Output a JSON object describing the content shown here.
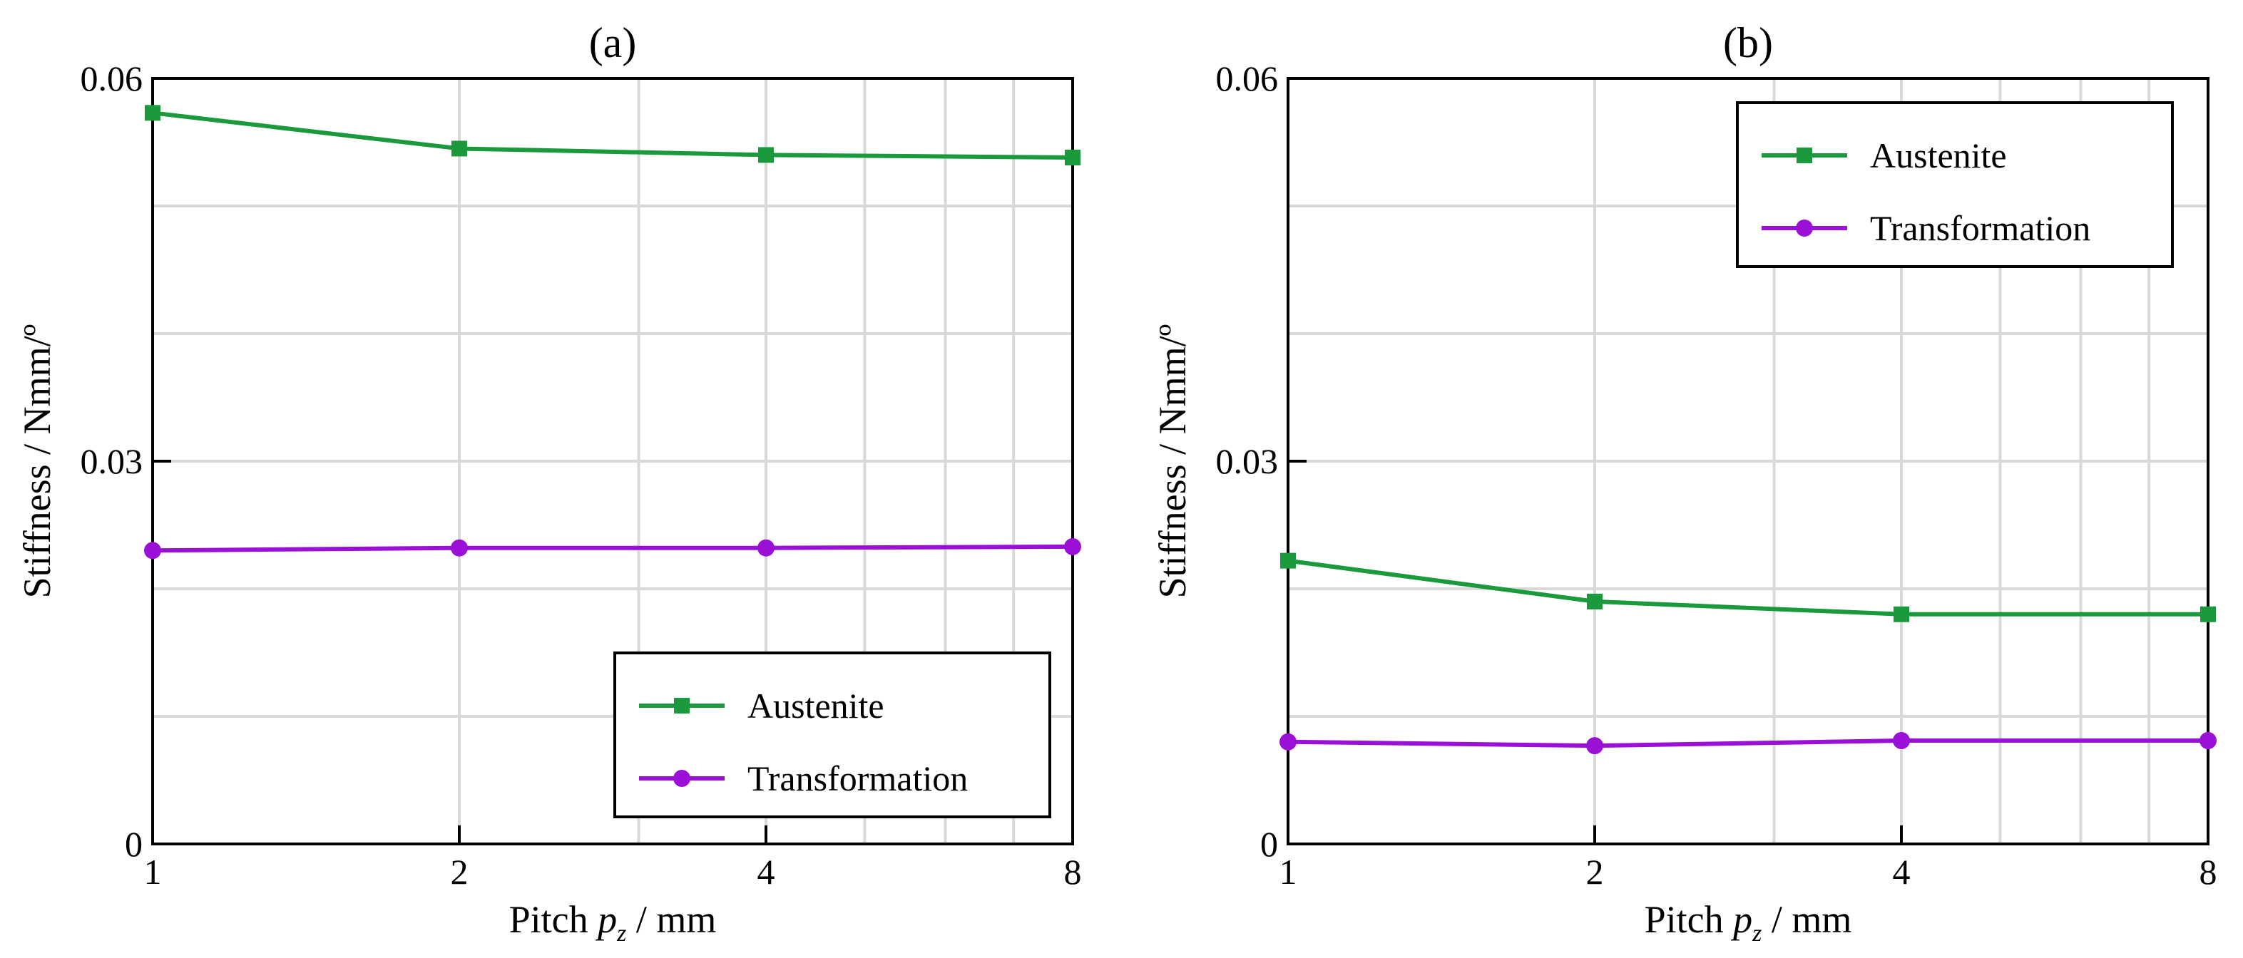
{
  "colors": {
    "austenite": "#1a9a3c",
    "transformation": "#9a10d6",
    "grid": "#d9d9d9",
    "axes": "#000000"
  },
  "chart_data": [
    {
      "type": "line",
      "title": "(a)",
      "xlabel_prefix": "Pitch ",
      "xlabel_var": "p",
      "xlabel_sub": "z",
      "xlabel_suffix": " / mm",
      "ylabel": "Stiffness / Nmm/º",
      "x_scale": "log2",
      "xlim": [
        1,
        8
      ],
      "ylim": [
        0,
        0.06
      ],
      "x_ticks": [
        1,
        2,
        4,
        8
      ],
      "x_tick_labels": [
        "1",
        "2",
        "4",
        "8"
      ],
      "y_ticks": [
        0,
        0.03,
        0.06
      ],
      "y_tick_labels": [
        "0",
        "0.03",
        "0.06"
      ],
      "grid": true,
      "legend_position": "bottom-right",
      "series": [
        {
          "name": "Austenite",
          "marker": "square",
          "color": "#1a9a3c",
          "x": [
            1,
            2,
            4,
            8
          ],
          "y": [
            0.0573,
            0.0545,
            0.054,
            0.0538
          ]
        },
        {
          "name": "Transformation",
          "marker": "circle",
          "color": "#9a10d6",
          "x": [
            1,
            2,
            4,
            8
          ],
          "y": [
            0.023,
            0.0232,
            0.0232,
            0.0233
          ]
        }
      ]
    },
    {
      "type": "line",
      "title": "(b)",
      "xlabel_prefix": "Pitch ",
      "xlabel_var": "p",
      "xlabel_sub": "z",
      "xlabel_suffix": " / mm",
      "ylabel": "Stiffness / Nmm/º",
      "x_scale": "log2",
      "xlim": [
        1,
        8
      ],
      "ylim": [
        0,
        0.06
      ],
      "x_ticks": [
        1,
        2,
        4,
        8
      ],
      "x_tick_labels": [
        "1",
        "2",
        "4",
        "8"
      ],
      "y_ticks": [
        0,
        0.03,
        0.06
      ],
      "y_tick_labels": [
        "0",
        "0.03",
        "0.06"
      ],
      "grid": true,
      "legend_position": "top-right",
      "series": [
        {
          "name": "Austenite",
          "marker": "square",
          "color": "#1a9a3c",
          "x": [
            1,
            2,
            4,
            8
          ],
          "y": [
            0.0222,
            0.019,
            0.018,
            0.018
          ]
        },
        {
          "name": "Transformation",
          "marker": "circle",
          "color": "#9a10d6",
          "x": [
            1,
            2,
            4,
            8
          ],
          "y": [
            0.008,
            0.0077,
            0.0081,
            0.0081
          ]
        }
      ]
    }
  ]
}
